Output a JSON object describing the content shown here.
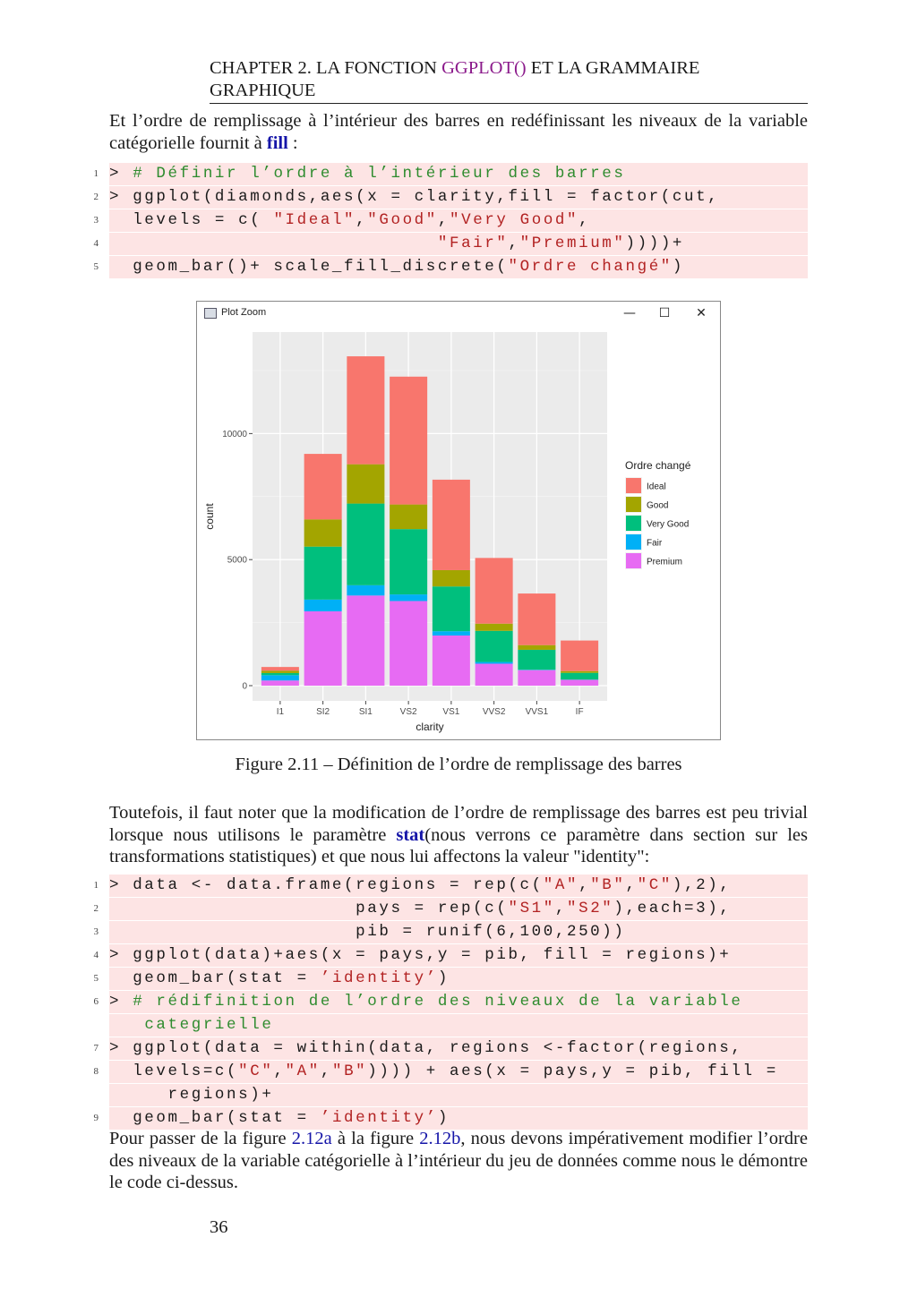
{
  "header": {
    "prefix": "CHAPTER 2.  LA FONCTION ",
    "keyword": "GGPLOT()",
    "suffix": " ET LA GRAMMAIRE",
    "line2": "GRAPHIQUE"
  },
  "para1": {
    "text": "Et l’ordre de remplissage à l’intérieur des barres en redéfinissant les niveaux de la variable catégorielle fournit à ",
    "link": "fill",
    "end": " :"
  },
  "code1": [
    {
      "num": "1",
      "parts": [
        {
          "t": "> ",
          "c": ""
        },
        {
          "t": "# Définir l’ordre à l’intérieur des barres",
          "c": "cm"
        }
      ]
    },
    {
      "num": "2",
      "parts": [
        {
          "t": "> ggplot(diamonds,aes(x = clarity,fill = factor(cut,",
          "c": ""
        }
      ]
    },
    {
      "num": "3",
      "parts": [
        {
          "t": "  levels = c( ",
          "c": ""
        },
        {
          "t": "\"Ideal\"",
          "c": "st"
        },
        {
          "t": ",",
          "c": ""
        },
        {
          "t": "\"Good\"",
          "c": "st"
        },
        {
          "t": ",",
          "c": ""
        },
        {
          "t": "\"Very Good\"",
          "c": "st"
        },
        {
          "t": ",",
          "c": ""
        }
      ]
    },
    {
      "num": "4",
      "parts": [
        {
          "t": "                            ",
          "c": ""
        },
        {
          "t": "\"Fair\"",
          "c": "st"
        },
        {
          "t": ",",
          "c": ""
        },
        {
          "t": "\"Premium\"",
          "c": "st"
        },
        {
          "t": "))))+",
          "c": ""
        }
      ]
    },
    {
      "num": "5",
      "parts": [
        {
          "t": "  geom_bar()+ scale_fill_discrete(",
          "c": ""
        },
        {
          "t": "\"Ordre changé\"",
          "c": "st"
        },
        {
          "t": ")",
          "c": ""
        }
      ]
    }
  ],
  "plot_window": {
    "title": "Plot Zoom",
    "minimize": "—",
    "maximize": "☐",
    "close": "✕"
  },
  "chart_data": {
    "type": "bar",
    "stacked": true,
    "xlabel": "clarity",
    "ylabel": "count",
    "categories": [
      "I1",
      "SI2",
      "SI1",
      "VS2",
      "VS1",
      "VVS2",
      "VVS1",
      "IF"
    ],
    "ylim": [
      0,
      13600
    ],
    "yticks": [
      0,
      5000,
      10000
    ],
    "yticklabels": [
      "0",
      "5000",
      "10000"
    ],
    "legend_title": "Ordre changé",
    "legend_position": "right",
    "grid": true,
    "stack_order_bottom_to_top": [
      "Premium",
      "Fair",
      "Very Good",
      "Good",
      "Ideal"
    ],
    "series": [
      {
        "name": "Ideal",
        "color": "#F8766D",
        "values": [
          146,
          2598,
          4282,
          5071,
          3589,
          2606,
          2047,
          1212
        ]
      },
      {
        "name": "Good",
        "color": "#A3A500",
        "values": [
          96,
          1081,
          1560,
          978,
          648,
          286,
          186,
          71
        ]
      },
      {
        "name": "Very Good",
        "color": "#00BF7D",
        "values": [
          84,
          2100,
          3240,
          2591,
          1775,
          1235,
          789,
          268
        ]
      },
      {
        "name": "Fair",
        "color": "#00B0F6",
        "values": [
          210,
          466,
          408,
          261,
          170,
          69,
          17,
          9
        ]
      },
      {
        "name": "Premium",
        "color": "#E76BF3",
        "values": [
          205,
          2949,
          3575,
          3357,
          1989,
          870,
          616,
          230
        ]
      }
    ]
  },
  "caption": "Figure 2.11 – Définition de l’ordre de remplissage des barres",
  "para2": {
    "before": "Toutefois, il faut noter que la modification de l’ordre de remplissage des barres est peu trivial lorsque nous utilisons le paramètre ",
    "link": "stat",
    "after": "(nous verrons ce paramètre dans section sur les transformations statistiques) et que nous lui affectons la valeur \"identity\":"
  },
  "code2": [
    {
      "num": "1",
      "parts": [
        {
          "t": "> data <- data.frame(regions = rep(c(",
          "c": ""
        },
        {
          "t": "\"A\"",
          "c": "st"
        },
        {
          "t": ",",
          "c": ""
        },
        {
          "t": "\"B\"",
          "c": "st"
        },
        {
          "t": ",",
          "c": ""
        },
        {
          "t": "\"C\"",
          "c": "st"
        },
        {
          "t": "),2),",
          "c": ""
        }
      ]
    },
    {
      "num": "2",
      "parts": [
        {
          "t": "                     pays = rep(c(",
          "c": ""
        },
        {
          "t": "\"S1\"",
          "c": "st"
        },
        {
          "t": ",",
          "c": ""
        },
        {
          "t": "\"S2\"",
          "c": "st"
        },
        {
          "t": "),each=3),",
          "c": ""
        }
      ]
    },
    {
      "num": "3",
      "parts": [
        {
          "t": "                     pib = runif(6,100,250))",
          "c": ""
        }
      ]
    },
    {
      "num": "4",
      "parts": [
        {
          "t": "> ggplot(data)+aes(x = pays,y = pib, fill = regions)+",
          "c": ""
        }
      ]
    },
    {
      "num": "5",
      "parts": [
        {
          "t": "  geom_bar(stat = ",
          "c": ""
        },
        {
          "t": "’identity’",
          "c": "st"
        },
        {
          "t": ")",
          "c": ""
        }
      ]
    },
    {
      "num": "6",
      "parts": [
        {
          "t": "> ",
          "c": ""
        },
        {
          "t": "# rédifinition de l’ordre des niveaux de la variable",
          "c": "cm"
        }
      ]
    },
    {
      "num": "",
      "parts": [
        {
          "t": "   ",
          "c": ""
        },
        {
          "t": "categrielle",
          "c": "cm"
        }
      ]
    },
    {
      "num": "7",
      "parts": [
        {
          "t": "> ggplot(data = within(data, regions <-factor(regions,",
          "c": ""
        }
      ]
    },
    {
      "num": "8",
      "parts": [
        {
          "t": "  levels=c(",
          "c": ""
        },
        {
          "t": "\"C\"",
          "c": "st"
        },
        {
          "t": ",",
          "c": ""
        },
        {
          "t": "\"A\"",
          "c": "st"
        },
        {
          "t": ",",
          "c": ""
        },
        {
          "t": "\"B\"",
          "c": "st"
        },
        {
          "t": ")))) + aes(x = pays,y = pib, fill =",
          "c": ""
        }
      ]
    },
    {
      "num": "",
      "parts": [
        {
          "t": "     regions)+",
          "c": ""
        }
      ]
    },
    {
      "num": "9",
      "parts": [
        {
          "t": "  geom_bar(stat = ",
          "c": ""
        },
        {
          "t": "’identity’",
          "c": "st"
        },
        {
          "t": ")",
          "c": ""
        }
      ]
    }
  ],
  "para3": {
    "before": "Pour passer de la figure ",
    "ref1": "2.12a",
    "middle": " à la figure ",
    "ref2": "2.12b",
    "after": ", nous devons impérativement modifier l’ordre des niveaux de la variable catégorielle à l’intérieur du jeu de données comme nous le démontre le code ci-dessus."
  },
  "page_number": "36"
}
